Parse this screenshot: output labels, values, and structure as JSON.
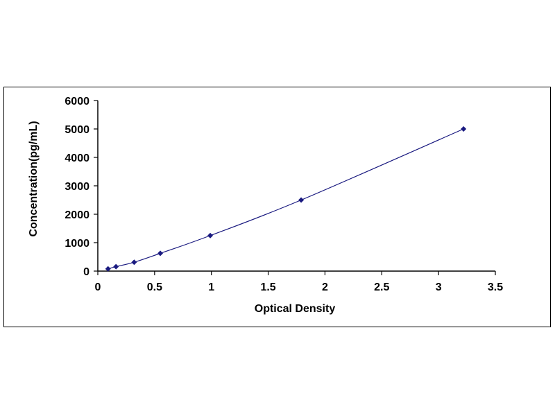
{
  "chart_data": {
    "type": "scatter",
    "title": "",
    "xlabel": "Optical Density",
    "ylabel": "Concentration(pg/mL)",
    "xlim": [
      0,
      3.5
    ],
    "ylim": [
      0,
      6000
    ],
    "x_ticks": [
      "0",
      "0.5",
      "1",
      "1.5",
      "2",
      "2.5",
      "3",
      "3.5"
    ],
    "y_ticks": [
      "0",
      "1000",
      "2000",
      "3000",
      "4000",
      "5000",
      "6000"
    ],
    "grid": false,
    "legend": "none",
    "marker_color": "#1a1a80",
    "line_color": "#1a1a80",
    "trendline": "smooth curve through points",
    "series": [
      {
        "x": [
          0.09,
          0.16,
          0.32,
          0.55,
          0.99,
          1.79,
          3.22
        ],
        "y": [
          78,
          156,
          312,
          625,
          1250,
          2500,
          5000
        ]
      }
    ]
  }
}
